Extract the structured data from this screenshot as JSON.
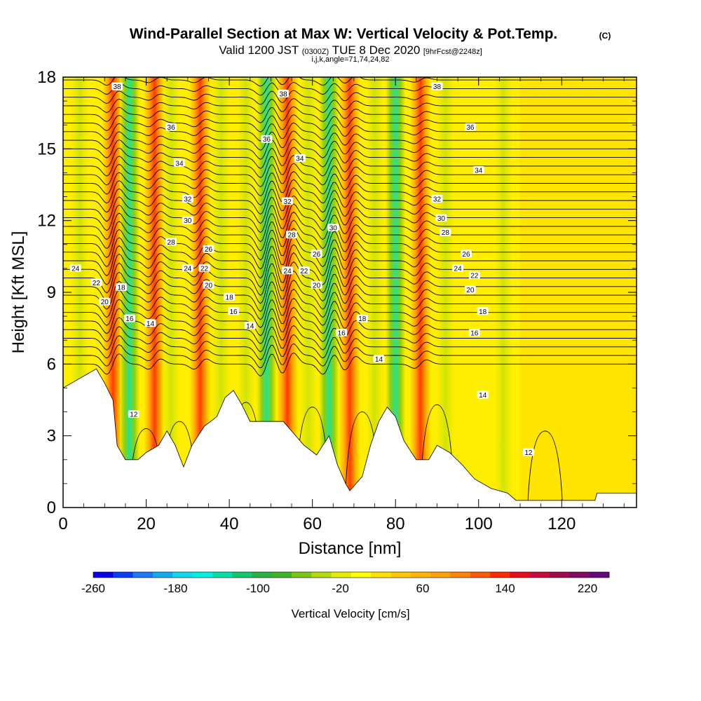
{
  "header": {
    "title": "Wind-Parallel Section at Max W: Vertical Velocity & Pot.Temp.",
    "title_mark": "(C)",
    "subtitle_part1": "Valid 1200 JST",
    "subtitle_part2": "(0300Z)",
    "subtitle_part3": "TUE 8 Dec 2020",
    "subtitle_part4": "[9hrFcst@2248z]",
    "indices": "i,j,k,angle=71,74,24,82"
  },
  "colorbar": {
    "label": "Vertical Velocity [cm/s]",
    "tick_labels": [
      "-260",
      "-180",
      "-100",
      "-20",
      "60",
      "140",
      "220"
    ],
    "colors": [
      "#0a00e8",
      "#0a3cf5",
      "#1878f5",
      "#14a8f0",
      "#10d8f0",
      "#00f0e0",
      "#00e0a8",
      "#10c870",
      "#28b040",
      "#40b428",
      "#78c814",
      "#b4dc0a",
      "#e6ee00",
      "#ffff00",
      "#ffe000",
      "#ffc800",
      "#ffb400",
      "#ffa000",
      "#ff8200",
      "#ff5a00",
      "#ff2800",
      "#e80a1e",
      "#c80a3c",
      "#a00a50",
      "#800a64",
      "#640a78"
    ]
  },
  "chart_data": {
    "type": "heatmap",
    "xlabel": "Distance [nm]",
    "ylabel": "Height [Kft MSL]",
    "xlim": [
      0,
      138
    ],
    "ylim": [
      0,
      18
    ],
    "x_ticks": [
      0,
      20,
      40,
      60,
      80,
      100,
      120
    ],
    "y_ticks": [
      0,
      3,
      6,
      9,
      12,
      15,
      18
    ],
    "x_tick_labels": [
      "0",
      "20",
      "40",
      "60",
      "80",
      "100",
      "120"
    ],
    "y_tick_labels": [
      "0",
      "3",
      "6",
      "9",
      "12",
      "15",
      "18"
    ],
    "field": "Vertical Velocity",
    "contour_field": "Potential Temperature",
    "updraft_bands_x": [
      12,
      22,
      33,
      54,
      69,
      86
    ],
    "downdraft_bands_x": [
      16,
      49,
      64,
      80
    ],
    "terrain": [
      {
        "x": 0,
        "y": 5.0
      },
      {
        "x": 3,
        "y": 5.3
      },
      {
        "x": 6,
        "y": 5.6
      },
      {
        "x": 8,
        "y": 5.8
      },
      {
        "x": 10,
        "y": 5.2
      },
      {
        "x": 12,
        "y": 4.5
      },
      {
        "x": 13,
        "y": 2.6
      },
      {
        "x": 15,
        "y": 2.0
      },
      {
        "x": 18,
        "y": 2.0
      },
      {
        "x": 20,
        "y": 2.3
      },
      {
        "x": 23,
        "y": 2.6
      },
      {
        "x": 25,
        "y": 3.2
      },
      {
        "x": 27,
        "y": 2.6
      },
      {
        "x": 29,
        "y": 1.7
      },
      {
        "x": 31,
        "y": 2.6
      },
      {
        "x": 34,
        "y": 3.4
      },
      {
        "x": 37,
        "y": 3.8
      },
      {
        "x": 39,
        "y": 4.6
      },
      {
        "x": 41,
        "y": 4.9
      },
      {
        "x": 43,
        "y": 4.3
      },
      {
        "x": 45,
        "y": 3.6
      },
      {
        "x": 50,
        "y": 3.6
      },
      {
        "x": 53,
        "y": 3.6
      },
      {
        "x": 56,
        "y": 3.0
      },
      {
        "x": 58,
        "y": 2.6
      },
      {
        "x": 61,
        "y": 2.2
      },
      {
        "x": 64,
        "y": 3.0
      },
      {
        "x": 66,
        "y": 1.8
      },
      {
        "x": 68,
        "y": 1.0
      },
      {
        "x": 69,
        "y": 0.7
      },
      {
        "x": 72,
        "y": 1.3
      },
      {
        "x": 74,
        "y": 2.6
      },
      {
        "x": 76,
        "y": 3.6
      },
      {
        "x": 78,
        "y": 4.2
      },
      {
        "x": 80,
        "y": 3.8
      },
      {
        "x": 82,
        "y": 2.8
      },
      {
        "x": 85,
        "y": 2.0
      },
      {
        "x": 88,
        "y": 2.0
      },
      {
        "x": 90,
        "y": 2.6
      },
      {
        "x": 93,
        "y": 2.3
      },
      {
        "x": 96,
        "y": 1.8
      },
      {
        "x": 99,
        "y": 1.2
      },
      {
        "x": 103,
        "y": 0.8
      },
      {
        "x": 107,
        "y": 0.6
      },
      {
        "x": 109,
        "y": 0.3
      },
      {
        "x": 113,
        "y": 0.3
      },
      {
        "x": 118,
        "y": 0.3
      },
      {
        "x": 122,
        "y": 0.3
      },
      {
        "x": 128,
        "y": 0.3
      },
      {
        "x": 128.5,
        "y": 0.6
      },
      {
        "x": 138,
        "y": 0.6
      }
    ],
    "isotherm_labels": [
      {
        "text": "38",
        "x": 13,
        "y": 17.6
      },
      {
        "text": "38",
        "x": 53,
        "y": 17.3
      },
      {
        "text": "38",
        "x": 90,
        "y": 17.6
      },
      {
        "text": "36",
        "x": 26,
        "y": 15.9
      },
      {
        "text": "36",
        "x": 49,
        "y": 15.4
      },
      {
        "text": "36",
        "x": 98,
        "y": 15.9
      },
      {
        "text": "34",
        "x": 28,
        "y": 14.4
      },
      {
        "text": "34",
        "x": 57,
        "y": 14.6
      },
      {
        "text": "34",
        "x": 100,
        "y": 14.1
      },
      {
        "text": "32",
        "x": 30,
        "y": 12.9
      },
      {
        "text": "32",
        "x": 54,
        "y": 12.8
      },
      {
        "text": "32",
        "x": 90,
        "y": 12.9
      },
      {
        "text": "30",
        "x": 30,
        "y": 12.0
      },
      {
        "text": "30",
        "x": 65,
        "y": 11.7
      },
      {
        "text": "30",
        "x": 91,
        "y": 12.1
      },
      {
        "text": "28",
        "x": 26,
        "y": 11.1
      },
      {
        "text": "28",
        "x": 55,
        "y": 11.4
      },
      {
        "text": "28",
        "x": 92,
        "y": 11.5
      },
      {
        "text": "26",
        "x": 35,
        "y": 10.8
      },
      {
        "text": "26",
        "x": 61,
        "y": 10.6
      },
      {
        "text": "26",
        "x": 97,
        "y": 10.6
      },
      {
        "text": "24",
        "x": 3,
        "y": 10.0
      },
      {
        "text": "24",
        "x": 30,
        "y": 10.0
      },
      {
        "text": "24",
        "x": 54,
        "y": 9.9
      },
      {
        "text": "24",
        "x": 95,
        "y": 10.0
      },
      {
        "text": "22",
        "x": 8,
        "y": 9.4
      },
      {
        "text": "22",
        "x": 34,
        "y": 10.0
      },
      {
        "text": "22",
        "x": 58,
        "y": 9.9
      },
      {
        "text": "22",
        "x": 99,
        "y": 9.7
      },
      {
        "text": "20",
        "x": 10,
        "y": 8.6
      },
      {
        "text": "20",
        "x": 35,
        "y": 9.3
      },
      {
        "text": "20",
        "x": 61,
        "y": 9.3
      },
      {
        "text": "20",
        "x": 98,
        "y": 9.1
      },
      {
        "text": "18",
        "x": 14,
        "y": 9.2
      },
      {
        "text": "18",
        "x": 40,
        "y": 8.8
      },
      {
        "text": "18",
        "x": 72,
        "y": 7.9
      },
      {
        "text": "18",
        "x": 101,
        "y": 8.2
      },
      {
        "text": "16",
        "x": 16,
        "y": 7.9
      },
      {
        "text": "16",
        "x": 41,
        "y": 8.2
      },
      {
        "text": "16",
        "x": 67,
        "y": 7.3
      },
      {
        "text": "16",
        "x": 99,
        "y": 7.3
      },
      {
        "text": "14",
        "x": 21,
        "y": 7.7
      },
      {
        "text": "14",
        "x": 45,
        "y": 7.6
      },
      {
        "text": "14",
        "x": 76,
        "y": 6.2
      },
      {
        "text": "14",
        "x": 101,
        "y": 4.7
      },
      {
        "text": "12",
        "x": 17,
        "y": 3.9
      },
      {
        "text": "12",
        "x": 112,
        "y": 2.3
      }
    ]
  }
}
